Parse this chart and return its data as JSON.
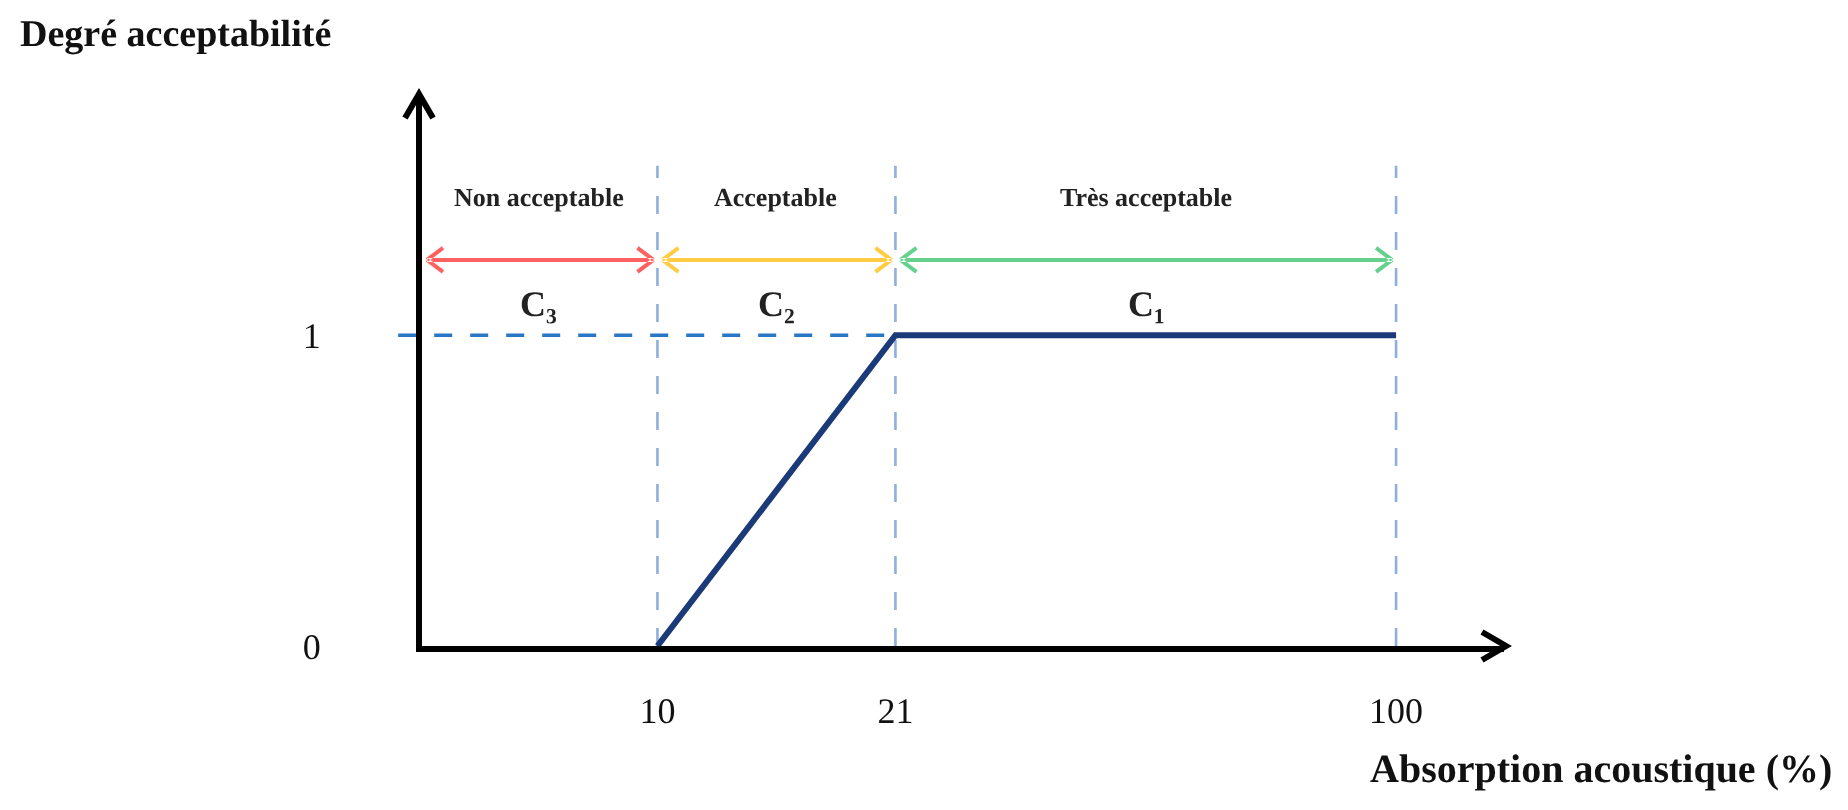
{
  "chart_data": {
    "type": "line",
    "xlabel": "Absorption acoustique (%)",
    "ylabel": "Degré acceptabilité",
    "x": [
      10,
      21,
      100
    ],
    "series": [
      {
        "color": "#1b3a7a",
        "values": [
          0,
          1,
          1
        ]
      }
    ],
    "log": "x",
    "xlim": [
      4.8,
      140
    ],
    "xticks": [
      10,
      21,
      100
    ],
    "ylim": [
      0,
      1.77
    ],
    "yticks": [
      0,
      1
    ],
    "ref_lines": [
      {
        "axis": "x",
        "value": 10,
        "color": "#8fb0dc",
        "line_style": "dashed"
      },
      {
        "axis": "x",
        "value": 21,
        "color": "#8fb0dc",
        "line_style": "dashed"
      },
      {
        "axis": "x",
        "value": 100,
        "color": "#8fb0dc",
        "line_style": "dashed"
      },
      {
        "axis": "y",
        "value": 1,
        "color": "#2a76c6",
        "line_style": "dashed"
      }
    ],
    "annotations": [
      "Non acceptable",
      "Acceptable",
      "Très acceptable",
      "C₃",
      "C₂",
      "C₁"
    ]
  }
}
